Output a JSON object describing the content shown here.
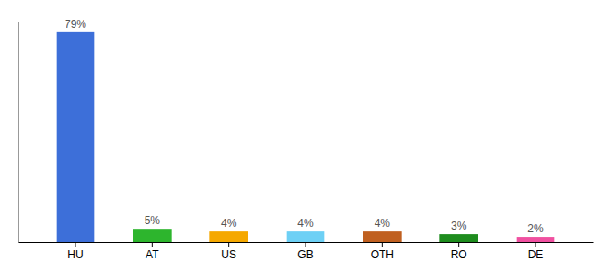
{
  "chart_data": {
    "type": "bar",
    "categories": [
      "HU",
      "AT",
      "US",
      "GB",
      "OTH",
      "RO",
      "DE"
    ],
    "values": [
      79,
      5,
      4,
      4,
      4,
      3,
      2
    ],
    "value_labels": [
      "79%",
      "5%",
      "4%",
      "4%",
      "4%",
      "3%",
      "2%"
    ],
    "colors": [
      "#3d6fd9",
      "#2db52d",
      "#f5a800",
      "#6dd0f5",
      "#c06020",
      "#1e8c1e",
      "#f050a0"
    ],
    "ylim": [
      0,
      83
    ],
    "yticks": [],
    "grid": false,
    "data_labels": true,
    "tick_labels": "x"
  }
}
